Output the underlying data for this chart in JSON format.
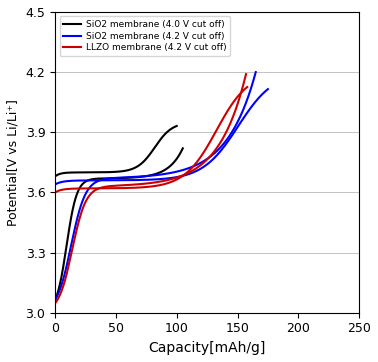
{
  "xlabel": "Capacity[mAh/g]",
  "ylabel": "Potential[V vs Li/Li⁺]",
  "xlim": [
    0,
    250
  ],
  "ylim": [
    3.0,
    4.5
  ],
  "xticks": [
    0,
    50,
    100,
    150,
    200,
    250
  ],
  "yticks": [
    3.0,
    3.3,
    3.6,
    3.9,
    4.2,
    4.5
  ],
  "legend": [
    {
      "label": "SiO2 membrane (4.0 V cut off)",
      "color": "#000000"
    },
    {
      "label": "SiO2 membrane (4.2 V cut off)",
      "color": "#0000FF"
    },
    {
      "label": "LLZO membrane (4.2 V cut off)",
      "color": "#CC0000"
    }
  ],
  "curves": {
    "black_charge": {
      "x_max": 100,
      "v_start": 3.68,
      "v_end": 3.95,
      "plat": 3.7,
      "sig_x0": 0.82,
      "sig_k": 14,
      "exp_k": 25
    },
    "black_discharge": {
      "x_max": 105,
      "v_start": 3.82,
      "v_plat": 3.67,
      "v_end": 3.0,
      "exp_k": 9,
      "sig_x0": 0.91,
      "sig_k": 25
    },
    "blue_charge": {
      "x_max": 175,
      "v_start": 3.64,
      "v_end": 4.2,
      "plat": 3.66,
      "sig_x0": 0.86,
      "sig_k": 12,
      "exp_k": 30
    },
    "blue_discharge": {
      "x_max": 165,
      "v_start": 4.2,
      "v_plat": 3.67,
      "v_end": 3.0,
      "exp_k": 7,
      "sig_x0": 0.92,
      "sig_k": 28
    },
    "red_charge": {
      "x_max": 158,
      "v_start": 3.6,
      "v_end": 4.2,
      "plat": 3.62,
      "sig_x0": 0.84,
      "sig_k": 12,
      "exp_k": 30
    },
    "red_discharge": {
      "x_max": 157,
      "v_start": 4.19,
      "v_plat": 3.63,
      "v_end": 3.0,
      "exp_k": 7,
      "sig_x0": 0.91,
      "sig_k": 28
    }
  }
}
